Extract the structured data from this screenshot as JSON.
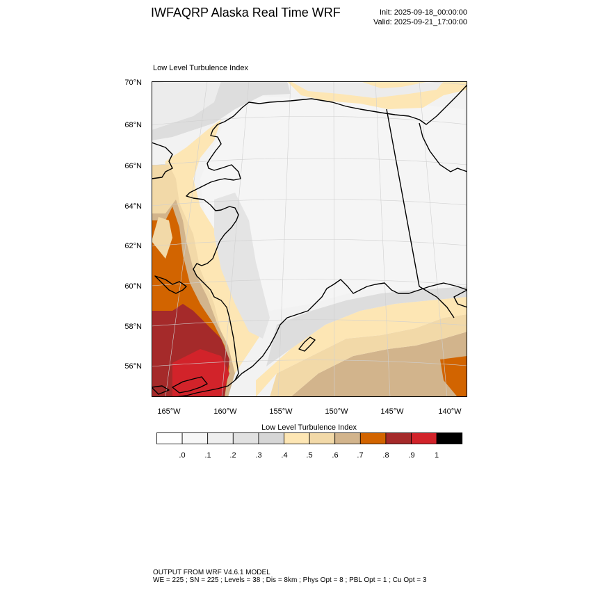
{
  "header": {
    "title": "IWFAQRP Alaska Real Time WRF",
    "init": "Init: 2025-09-18_00:00:00",
    "valid": "Valid: 2025-09-21_17:00:00"
  },
  "map": {
    "subtitle": "Low Level Turbulence Index",
    "lat_labels": [
      "70°N",
      "68°N",
      "66°N",
      "64°N",
      "62°N",
      "60°N",
      "58°N",
      "56°N"
    ],
    "lon_labels": [
      "165°W",
      "160°W",
      "155°W",
      "150°W",
      "145°W",
      "140°W"
    ]
  },
  "colorbar": {
    "title": "Low Level Turbulence Index",
    "labels": [
      ".0",
      ".1",
      ".2",
      ".3",
      ".4",
      ".5",
      ".6",
      ".7",
      ".8",
      ".9",
      "1"
    ],
    "colors": [
      "#ffffff",
      "#f7f7f7",
      "#efefef",
      "#e1e1e1",
      "#d6d6d6",
      "#fde6b4",
      "#f2d9a8",
      "#d2b48c",
      "#d26400",
      "#a52a2a",
      "#d2232a",
      "#000000"
    ]
  },
  "footer": {
    "line1": "OUTPUT FROM WRF V4.6.1 MODEL",
    "line2": "WE = 225 ; SN = 225 ; Levels = 38 ; Dis = 8km ; Phys Opt = 8 ; PBL Opt = 1 ; Cu Opt = 3"
  }
}
